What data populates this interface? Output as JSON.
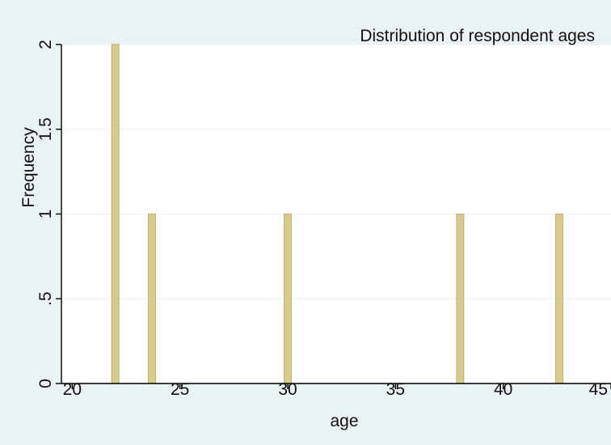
{
  "chart_data": {
    "type": "bar",
    "title": "Distribution of respondent ages",
    "xlabel": "age",
    "ylabel": "Frequency",
    "x": [
      22,
      23.7,
      30,
      38,
      42.6
    ],
    "values": [
      2,
      1,
      1,
      1,
      1
    ],
    "xlim": [
      19.5,
      45
    ],
    "ylim": [
      0,
      2
    ],
    "xticks": [
      20,
      25,
      30,
      35,
      40,
      45
    ],
    "xtick_labels": [
      "20",
      "25",
      "30",
      "35",
      "40",
      "45"
    ],
    "yticks": [
      0,
      0.5,
      1,
      1.5,
      2
    ],
    "ytick_labels": [
      "0",
      ".5",
      "1",
      "1.5",
      "2"
    ],
    "grid": true,
    "colors": {
      "background": "#eaf2f3",
      "plot_background": "#ffffff",
      "bar_fill": "#d6ca8e",
      "bar_stroke": "#bfb06a",
      "grid": "#eaf2f3"
    }
  }
}
